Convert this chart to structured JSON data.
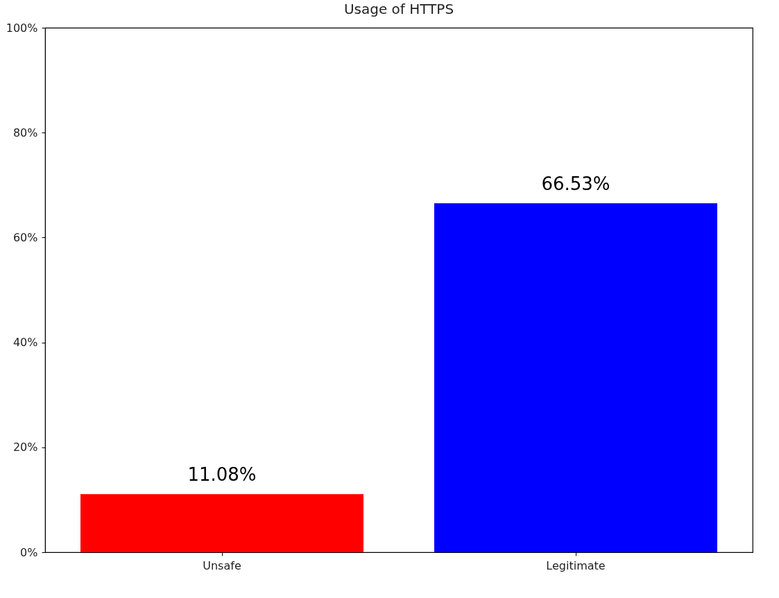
{
  "chart_data": {
    "type": "bar",
    "title": "Usage of HTTPS",
    "categories": [
      "Unsafe",
      "Legitimate"
    ],
    "values": [
      11.08,
      66.53
    ],
    "colors": [
      "#ff0000",
      "#0000ff"
    ],
    "value_labels": [
      "11.08%",
      "66.53%"
    ],
    "ylim": [
      0,
      100
    ],
    "yticks": [
      {
        "value": 0,
        "label": "0%"
      },
      {
        "value": 20,
        "label": "20%"
      },
      {
        "value": 40,
        "label": "40%"
      },
      {
        "value": 60,
        "label": "60%"
      },
      {
        "value": 80,
        "label": "80%"
      },
      {
        "value": 100,
        "label": "100%"
      }
    ],
    "grid": false
  }
}
